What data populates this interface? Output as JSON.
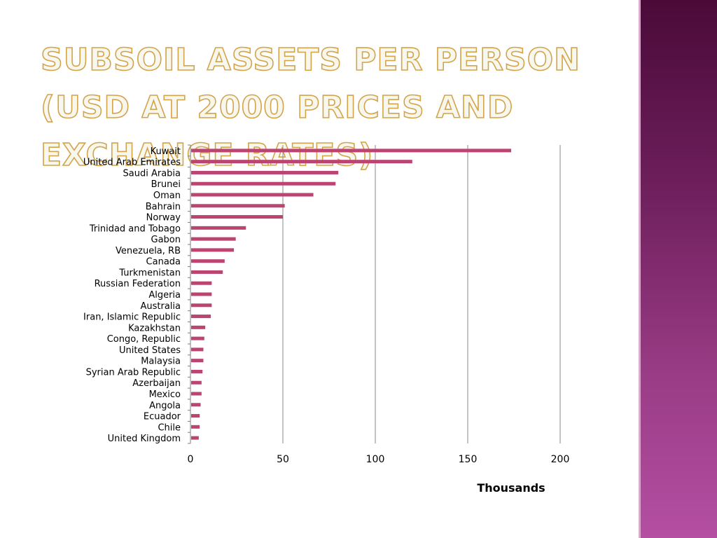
{
  "slide": {
    "title": "Subsoil Assets per Person (USD at 2000 Prices and Exchange Rates)"
  },
  "colors": {
    "bar": "#bb4470",
    "gridline": "#8a8a8a",
    "axis": "#808080",
    "panel_top": "#4a0a38",
    "panel_bottom": "#b44fa2",
    "title_outline": "#d3a44a"
  },
  "chart_data": {
    "type": "bar",
    "orientation": "horizontal",
    "categories": [
      "Kuwait",
      "United Arab Emirates",
      "Saudi Arabia",
      "Brunei",
      "Oman",
      "Bahrain",
      "Norway",
      "Trinidad and Tobago",
      "Gabon",
      "Venezuela, RB",
      "Canada",
      "Turkmenistan",
      "Russian Federation",
      "Algeria",
      "Australia",
      "Iran, Islamic Republic",
      "Kazakhstan",
      "Congo, Republic",
      "United States",
      "Malaysia",
      "Syrian Arab Republic",
      "Azerbaijan",
      "Mexico",
      "Angola",
      "Ecuador",
      "Chile",
      "United Kingdom"
    ],
    "values": [
      173.5,
      120,
      80,
      78.5,
      66.5,
      51,
      50,
      30,
      24.5,
      23.5,
      18.5,
      17.5,
      11.5,
      11.5,
      11.5,
      11,
      8,
      7.5,
      7,
      7,
      6.5,
      6,
      6,
      5.5,
      5,
      5,
      4.5
    ],
    "xlim": [
      0,
      200
    ],
    "xticks": [
      0,
      50,
      100,
      150,
      200
    ],
    "xlabel": "Thousands",
    "ylabel": "",
    "grid": "vertical"
  }
}
